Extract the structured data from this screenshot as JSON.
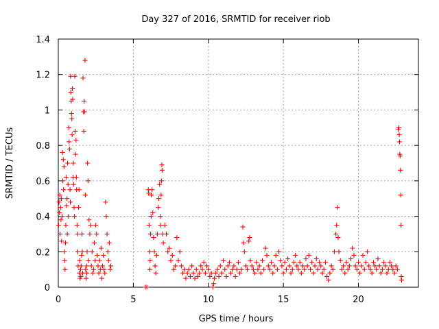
{
  "chart_data": {
    "type": "scatter",
    "title": "Day 327 of 2016, SRMTID for receiver riob",
    "xlabel": "GPS time / hours",
    "ylabel": "SRMTID / TECUs",
    "xlim": [
      0,
      24
    ],
    "ylim": [
      0,
      1.4
    ],
    "xticks": [
      0,
      5,
      10,
      15,
      20
    ],
    "yticks": [
      0,
      0.2,
      0.4,
      0.6,
      0.8,
      1,
      1.2,
      1.4
    ],
    "xtick_labels": [
      "0",
      "5",
      "10",
      "15",
      "20"
    ],
    "ytick_labels": [
      "0",
      "0.2",
      "0.4",
      "0.6",
      "0.8",
      "1",
      "1.2",
      "1.4"
    ],
    "grid": true,
    "marker": "+",
    "color": "#ff0000",
    "series": [
      {
        "name": "SRMTID",
        "points": [
          [
            0.02,
            0.35
          ],
          [
            0.05,
            0.48
          ],
          [
            0.08,
            0.42
          ],
          [
            0.1,
            0.52
          ],
          [
            0.12,
            0.3
          ],
          [
            0.15,
            0.45
          ],
          [
            0.18,
            0.38
          ],
          [
            0.2,
            0.5
          ],
          [
            0.22,
            0.26
          ],
          [
            0.25,
            0.4
          ],
          [
            0.28,
            0.76
          ],
          [
            0.3,
            0.6
          ],
          [
            0.33,
            0.72
          ],
          [
            0.35,
            0.55
          ],
          [
            0.38,
            0.68
          ],
          [
            0.4,
            0.2
          ],
          [
            0.42,
            0.15
          ],
          [
            0.45,
            0.1
          ],
          [
            0.48,
            0.25
          ],
          [
            0.5,
            0.35
          ],
          [
            0.52,
            0.62
          ],
          [
            0.55,
            0.46
          ],
          [
            0.58,
            0.5
          ],
          [
            0.6,
            0.3
          ],
          [
            0.62,
            0.7
          ],
          [
            0.65,
            0.58
          ],
          [
            0.68,
            0.4
          ],
          [
            0.7,
            0.9
          ],
          [
            0.72,
            0.82
          ],
          [
            0.75,
            0.78
          ],
          [
            0.78,
            0.55
          ],
          [
            0.8,
            0.48
          ],
          [
            0.82,
            1.19
          ],
          [
            0.84,
            1.1
          ],
          [
            0.86,
            1.05
          ],
          [
            0.88,
            0.98
          ],
          [
            0.9,
            0.95
          ],
          [
            0.92,
            0.86
          ],
          [
            0.94,
            1.12
          ],
          [
            0.96,
            1.06
          ],
          [
            0.98,
            0.62
          ],
          [
            1.0,
            0.7
          ],
          [
            1.02,
            0.58
          ],
          [
            1.05,
            0.45
          ],
          [
            1.08,
            0.4
          ],
          [
            1.1,
            1.19
          ],
          [
            1.12,
            0.88
          ],
          [
            1.15,
            0.75
          ],
          [
            1.18,
            0.83
          ],
          [
            1.2,
            0.62
          ],
          [
            1.22,
            0.55
          ],
          [
            1.25,
            0.35
          ],
          [
            1.28,
            0.3
          ],
          [
            1.3,
            0.2
          ],
          [
            1.32,
            0.12
          ],
          [
            1.35,
            0.45
          ],
          [
            1.38,
            0.55
          ],
          [
            1.4,
            0.08
          ],
          [
            1.42,
            0.15
          ],
          [
            1.45,
            0.05
          ],
          [
            1.48,
            0.1
          ],
          [
            1.5,
            0.06
          ],
          [
            1.52,
            0.12
          ],
          [
            1.55,
            0.18
          ],
          [
            1.58,
            0.3
          ],
          [
            1.6,
            0.2
          ],
          [
            1.62,
            0.08
          ],
          [
            1.65,
            1.18
          ],
          [
            1.68,
            0.99
          ],
          [
            1.7,
            0.88
          ],
          [
            1.72,
            1.05
          ],
          [
            1.75,
            0.99
          ],
          [
            1.78,
            1.28
          ],
          [
            1.8,
            0.52
          ],
          [
            1.82,
            0.1
          ],
          [
            1.85,
            0.05
          ],
          [
            1.88,
            0.12
          ],
          [
            1.9,
            0.08
          ],
          [
            1.92,
            0.2
          ],
          [
            1.95,
            0.7
          ],
          [
            1.98,
            0.6
          ],
          [
            2.0,
            0.15
          ],
          [
            2.05,
            0.38
          ],
          [
            2.1,
            0.3
          ],
          [
            2.15,
            0.35
          ],
          [
            2.2,
            0.12
          ],
          [
            2.25,
            0.2
          ],
          [
            2.3,
            0.08
          ],
          [
            2.35,
            0.1
          ],
          [
            2.4,
            0.25
          ],
          [
            2.45,
            0.15
          ],
          [
            2.5,
            0.35
          ],
          [
            2.55,
            0.3
          ],
          [
            2.6,
            0.18
          ],
          [
            2.65,
            0.12
          ],
          [
            2.7,
            0.08
          ],
          [
            2.75,
            0.15
          ],
          [
            2.8,
            0.1
          ],
          [
            2.85,
            0.22
          ],
          [
            2.9,
            0.05
          ],
          [
            2.95,
            0.12
          ],
          [
            3.0,
            0.18
          ],
          [
            3.05,
            0.1
          ],
          [
            3.1,
            0.08
          ],
          [
            3.15,
            0.48
          ],
          [
            3.2,
            0.4
          ],
          [
            3.25,
            0.3
          ],
          [
            3.3,
            0.2
          ],
          [
            3.35,
            0.15
          ],
          [
            3.4,
            0.25
          ],
          [
            3.45,
            0.1
          ],
          [
            3.5,
            0.12
          ],
          [
            5.8,
            0.0
          ],
          [
            5.9,
            0.0
          ],
          [
            6.0,
            0.55
          ],
          [
            6.02,
            0.53
          ],
          [
            6.05,
            0.35
          ],
          [
            6.08,
            0.2
          ],
          [
            6.1,
            0.1
          ],
          [
            6.12,
            0.15
          ],
          [
            6.15,
            0.3
          ],
          [
            6.18,
            0.4
          ],
          [
            6.2,
            0.52
          ],
          [
            6.25,
            0.55
          ],
          [
            6.3,
            0.42
          ],
          [
            6.35,
            0.28
          ],
          [
            6.4,
            0.2
          ],
          [
            6.45,
            0.12
          ],
          [
            6.5,
            0.08
          ],
          [
            6.55,
            0.18
          ],
          [
            6.6,
            0.3
          ],
          [
            6.65,
            0.45
          ],
          [
            6.7,
            0.5
          ],
          [
            6.75,
            0.58
          ],
          [
            6.8,
            0.4
          ],
          [
            6.82,
            0.35
          ],
          [
            6.85,
            0.52
          ],
          [
            6.88,
            0.6
          ],
          [
            6.9,
            0.69
          ],
          [
            6.92,
            0.66
          ],
          [
            6.95,
            0.3
          ],
          [
            7.0,
            0.25
          ],
          [
            7.1,
            0.35
          ],
          [
            7.2,
            0.3
          ],
          [
            7.3,
            0.2
          ],
          [
            7.4,
            0.22
          ],
          [
            7.5,
            0.15
          ],
          [
            7.6,
            0.18
          ],
          [
            7.7,
            0.1
          ],
          [
            7.8,
            0.12
          ],
          [
            7.9,
            0.28
          ],
          [
            8.0,
            0.15
          ],
          [
            8.1,
            0.2
          ],
          [
            8.2,
            0.12
          ],
          [
            8.3,
            0.08
          ],
          [
            8.4,
            0.1
          ],
          [
            8.5,
            0.05
          ],
          [
            8.6,
            0.08
          ],
          [
            8.7,
            0.1
          ],
          [
            8.8,
            0.06
          ],
          [
            8.9,
            0.12
          ],
          [
            9.0,
            0.08
          ],
          [
            9.1,
            0.05
          ],
          [
            9.2,
            0.1
          ],
          [
            9.3,
            0.06
          ],
          [
            9.4,
            0.08
          ],
          [
            9.5,
            0.12
          ],
          [
            9.6,
            0.1
          ],
          [
            9.7,
            0.14
          ],
          [
            9.8,
            0.08
          ],
          [
            9.9,
            0.12
          ],
          [
            10.0,
            0.1
          ],
          [
            10.1,
            0.06
          ],
          [
            10.2,
            0.08
          ],
          [
            10.3,
            0.0
          ],
          [
            10.35,
            0.02
          ],
          [
            10.4,
            0.05
          ],
          [
            10.5,
            0.08
          ],
          [
            10.6,
            0.1
          ],
          [
            10.7,
            0.06
          ],
          [
            10.8,
            0.12
          ],
          [
            10.9,
            0.08
          ],
          [
            11.0,
            0.15
          ],
          [
            11.1,
            0.1
          ],
          [
            11.2,
            0.06
          ],
          [
            11.3,
            0.12
          ],
          [
            11.4,
            0.14
          ],
          [
            11.5,
            0.08
          ],
          [
            11.6,
            0.1
          ],
          [
            11.7,
            0.12
          ],
          [
            11.8,
            0.06
          ],
          [
            11.9,
            0.1
          ],
          [
            12.0,
            0.14
          ],
          [
            12.1,
            0.08
          ],
          [
            12.2,
            0.1
          ],
          [
            12.3,
            0.34
          ],
          [
            12.35,
            0.25
          ],
          [
            12.4,
            0.2
          ],
          [
            12.5,
            0.12
          ],
          [
            12.6,
            0.1
          ],
          [
            12.7,
            0.26
          ],
          [
            12.75,
            0.28
          ],
          [
            12.8,
            0.15
          ],
          [
            12.9,
            0.12
          ],
          [
            13.0,
            0.1
          ],
          [
            13.1,
            0.08
          ],
          [
            13.2,
            0.14
          ],
          [
            13.3,
            0.1
          ],
          [
            13.4,
            0.12
          ],
          [
            13.5,
            0.08
          ],
          [
            13.6,
            0.15
          ],
          [
            13.7,
            0.1
          ],
          [
            13.8,
            0.22
          ],
          [
            13.9,
            0.18
          ],
          [
            14.0,
            0.12
          ],
          [
            14.1,
            0.1
          ],
          [
            14.2,
            0.14
          ],
          [
            14.3,
            0.08
          ],
          [
            14.4,
            0.12
          ],
          [
            14.5,
            0.18
          ],
          [
            14.6,
            0.1
          ],
          [
            14.7,
            0.2
          ],
          [
            14.8,
            0.15
          ],
          [
            14.9,
            0.12
          ],
          [
            15.0,
            0.08
          ],
          [
            15.1,
            0.14
          ],
          [
            15.2,
            0.1
          ],
          [
            15.3,
            0.16
          ],
          [
            15.4,
            0.12
          ],
          [
            15.5,
            0.08
          ],
          [
            15.6,
            0.1
          ],
          [
            15.7,
            0.14
          ],
          [
            15.8,
            0.18
          ],
          [
            15.9,
            0.12
          ],
          [
            16.0,
            0.1
          ],
          [
            16.1,
            0.14
          ],
          [
            16.2,
            0.08
          ],
          [
            16.3,
            0.12
          ],
          [
            16.4,
            0.1
          ],
          [
            16.5,
            0.16
          ],
          [
            16.6,
            0.12
          ],
          [
            16.7,
            0.18
          ],
          [
            16.8,
            0.1
          ],
          [
            16.9,
            0.14
          ],
          [
            17.0,
            0.08
          ],
          [
            17.1,
            0.12
          ],
          [
            17.2,
            0.16
          ],
          [
            17.3,
            0.1
          ],
          [
            17.4,
            0.14
          ],
          [
            17.5,
            0.12
          ],
          [
            17.6,
            0.08
          ],
          [
            17.7,
            0.1
          ],
          [
            17.8,
            0.14
          ],
          [
            17.9,
            0.06
          ],
          [
            18.0,
            0.04
          ],
          [
            18.1,
            0.08
          ],
          [
            18.2,
            0.12
          ],
          [
            18.3,
            0.1
          ],
          [
            18.4,
            0.2
          ],
          [
            18.5,
            0.3
          ],
          [
            18.55,
            0.35
          ],
          [
            18.6,
            0.45
          ],
          [
            18.65,
            0.28
          ],
          [
            18.7,
            0.2
          ],
          [
            18.8,
            0.15
          ],
          [
            18.9,
            0.1
          ],
          [
            19.0,
            0.12
          ],
          [
            19.1,
            0.08
          ],
          [
            19.2,
            0.14
          ],
          [
            19.3,
            0.1
          ],
          [
            19.4,
            0.12
          ],
          [
            19.5,
            0.16
          ],
          [
            19.6,
            0.22
          ],
          [
            19.7,
            0.18
          ],
          [
            19.8,
            0.12
          ],
          [
            19.9,
            0.1
          ],
          [
            20.0,
            0.14
          ],
          [
            20.1,
            0.08
          ],
          [
            20.2,
            0.12
          ],
          [
            20.3,
            0.18
          ],
          [
            20.4,
            0.1
          ],
          [
            20.5,
            0.14
          ],
          [
            20.6,
            0.2
          ],
          [
            20.7,
            0.12
          ],
          [
            20.8,
            0.1
          ],
          [
            20.9,
            0.08
          ],
          [
            21.0,
            0.14
          ],
          [
            21.1,
            0.12
          ],
          [
            21.2,
            0.1
          ],
          [
            21.3,
            0.16
          ],
          [
            21.4,
            0.12
          ],
          [
            21.5,
            0.08
          ],
          [
            21.6,
            0.1
          ],
          [
            21.7,
            0.14
          ],
          [
            21.8,
            0.12
          ],
          [
            21.9,
            0.08
          ],
          [
            22.0,
            0.1
          ],
          [
            22.1,
            0.14
          ],
          [
            22.2,
            0.12
          ],
          [
            22.3,
            0.1
          ],
          [
            22.4,
            0.08
          ],
          [
            22.5,
            0.12
          ],
          [
            22.6,
            0.1
          ],
          [
            22.65,
            0.89
          ],
          [
            22.7,
            0.9
          ],
          [
            22.72,
            0.86
          ],
          [
            22.74,
            0.82
          ],
          [
            22.76,
            0.75
          ],
          [
            22.78,
            0.74
          ],
          [
            22.8,
            0.66
          ],
          [
            22.82,
            0.52
          ],
          [
            22.84,
            0.35
          ],
          [
            22.86,
            0.06
          ],
          [
            22.88,
            0.04
          ]
        ]
      }
    ]
  }
}
